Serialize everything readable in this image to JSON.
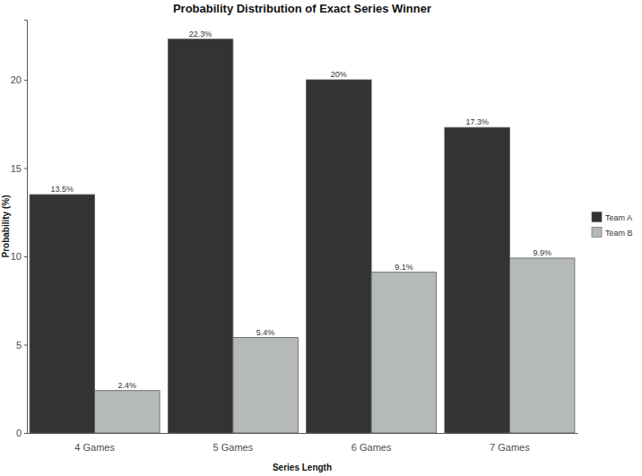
{
  "chart_data": {
    "type": "bar",
    "title": "Probability Distribution of Exact Series Winner",
    "x_label": "Series Length",
    "y_label": "Probability (%)",
    "categories": [
      "4 Games",
      "5 Games",
      "6 Games",
      "7 Games"
    ],
    "series": [
      {
        "name": "Team A",
        "color": "#333333",
        "values": [
          13.5,
          22.3,
          20,
          17.3
        ],
        "value_labels": [
          "13.5%",
          "22.3%",
          "20%",
          "17.3%"
        ]
      },
      {
        "name": "Team B",
        "color": "#b5b9ba",
        "values": [
          2.4,
          5.4,
          9.1,
          9.9
        ],
        "value_labels": [
          "2.4%",
          "5.4%",
          "9.1%",
          "9.9%"
        ]
      }
    ],
    "ylim": [
      0,
      23.4
    ],
    "yticks": [
      0,
      5,
      10,
      15,
      20
    ],
    "grid": false,
    "legend": "right",
    "data_labels": true
  }
}
